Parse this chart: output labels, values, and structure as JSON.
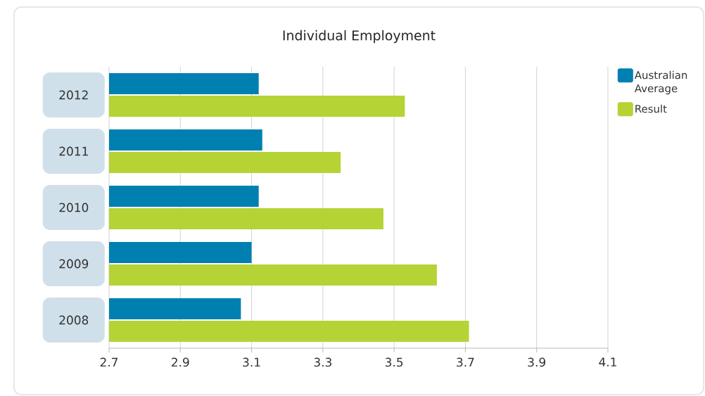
{
  "chart_data": {
    "type": "bar",
    "orientation": "horizontal",
    "title": "Individual Employment",
    "categories": [
      "2012",
      "2011",
      "2010",
      "2009",
      "2008"
    ],
    "series": [
      {
        "name": "Australian Average",
        "color": "#0080b0",
        "values": [
          3.12,
          3.13,
          3.12,
          3.1,
          3.07
        ]
      },
      {
        "name": "Result",
        "color": "#b5d334",
        "values": [
          3.53,
          3.35,
          3.47,
          3.62,
          3.71
        ]
      }
    ],
    "xlim": [
      2.7,
      4.1
    ],
    "xticks": [
      2.7,
      2.9,
      3.1,
      3.3,
      3.5,
      3.7,
      3.9,
      4.1
    ],
    "grid": "x",
    "legend": "top right"
  }
}
